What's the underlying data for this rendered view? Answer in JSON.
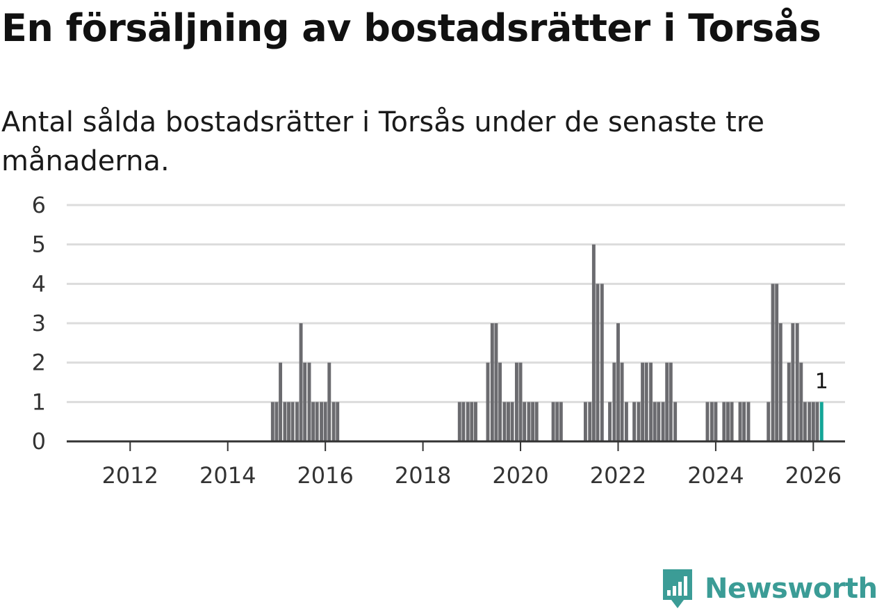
{
  "header": {
    "title": "En försäljning av bostadsrätter i Torsås",
    "subtitle": "Antal sålda bostadsrätter i Torsås under de senaste tre månaderna."
  },
  "brand": {
    "name": "Newsworthy",
    "color": "#3b9c96"
  },
  "chart_data": {
    "type": "bar",
    "ylim": [
      0,
      6
    ],
    "yticks": [
      "0",
      "1",
      "2",
      "3",
      "4",
      "5",
      "6"
    ],
    "xlim": [
      2010.7,
      2026.65
    ],
    "xticks": [
      "2012",
      "2014",
      "2016",
      "2018",
      "2020",
      "2022",
      "2024",
      "2026"
    ],
    "bar_width_years": 0.07,
    "bar_color": "#6b6b6f",
    "highlight_color": "#13a597",
    "grid": true,
    "x": [
      2014.92,
      2015.0,
      2015.08,
      2015.17,
      2015.25,
      2015.33,
      2015.42,
      2015.5,
      2015.58,
      2015.67,
      2015.75,
      2015.83,
      2015.92,
      2016.0,
      2016.08,
      2016.17,
      2016.25,
      2018.75,
      2018.83,
      2018.92,
      2019.0,
      2019.08,
      2019.33,
      2019.42,
      2019.5,
      2019.58,
      2019.67,
      2019.75,
      2019.83,
      2019.92,
      2020.0,
      2020.08,
      2020.17,
      2020.25,
      2020.33,
      2020.67,
      2020.75,
      2020.83,
      2021.33,
      2021.42,
      2021.5,
      2021.58,
      2021.67,
      2021.83,
      2021.92,
      2022.0,
      2022.08,
      2022.17,
      2022.33,
      2022.42,
      2022.5,
      2022.58,
      2022.67,
      2022.75,
      2022.83,
      2022.92,
      2023.0,
      2023.08,
      2023.17,
      2023.83,
      2023.92,
      2024.0,
      2024.17,
      2024.25,
      2024.33,
      2024.5,
      2024.58,
      2024.67,
      2025.08,
      2025.17,
      2025.25,
      2025.33,
      2025.5,
      2025.58,
      2025.67,
      2025.75,
      2025.83,
      2025.92,
      2026.0,
      2026.08,
      2026.17
    ],
    "values": [
      1,
      1,
      2,
      1,
      1,
      1,
      1,
      3,
      2,
      2,
      1,
      1,
      1,
      1,
      2,
      1,
      1,
      1,
      1,
      1,
      1,
      1,
      2,
      3,
      3,
      2,
      1,
      1,
      1,
      2,
      2,
      1,
      1,
      1,
      1,
      1,
      1,
      1,
      1,
      1,
      5,
      4,
      4,
      1,
      2,
      3,
      2,
      1,
      1,
      1,
      2,
      2,
      2,
      1,
      1,
      1,
      2,
      2,
      1,
      1,
      1,
      1,
      1,
      1,
      1,
      1,
      1,
      1,
      1,
      4,
      4,
      3,
      2,
      3,
      3,
      2,
      1,
      1,
      1,
      1,
      1
    ],
    "last_label": "1"
  }
}
